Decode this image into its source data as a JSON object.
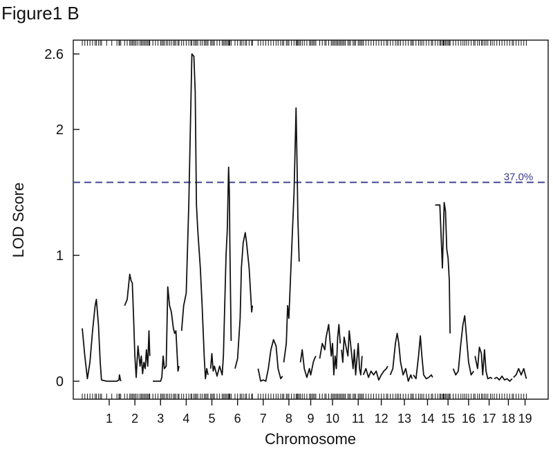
{
  "figure_label": "Figure1 B",
  "chart_data": {
    "type": "line",
    "xlabel": "Chromosome",
    "ylabel": "LOD Score",
    "ylim": [
      0,
      2.6
    ],
    "y_ticks": [
      {
        "value": 0,
        "label": "0"
      },
      {
        "value": 1,
        "label": "1"
      },
      {
        "value": 2,
        "label": "2"
      },
      {
        "value": 2.6,
        "label": "2.6"
      }
    ],
    "grid": false,
    "threshold": {
      "value": 1.58,
      "label": "37.0%",
      "color": "#3a3a8f",
      "style": "dashed"
    },
    "line_color": "#111111",
    "chromosomes": [
      {
        "label": "1",
        "start": 0.0,
        "end": 1.0
      },
      {
        "label": "2",
        "start": 1.0,
        "end": 2.0
      },
      {
        "label": "3",
        "start": 2.0,
        "end": 3.0
      },
      {
        "label": "4",
        "start": 3.0,
        "end": 4.0
      },
      {
        "label": "5",
        "start": 4.0,
        "end": 5.0
      },
      {
        "label": "6",
        "start": 5.0,
        "end": 6.0
      },
      {
        "label": "7",
        "start": 6.0,
        "end": 7.0
      },
      {
        "label": "8",
        "start": 7.0,
        "end": 8.0
      },
      {
        "label": "9",
        "start": 8.0,
        "end": 8.7
      },
      {
        "label": "10",
        "start": 8.7,
        "end": 9.7
      },
      {
        "label": "11",
        "start": 9.7,
        "end": 10.7
      },
      {
        "label": "12",
        "start": 10.7,
        "end": 11.5
      },
      {
        "label": "13",
        "start": 11.5,
        "end": 12.5
      },
      {
        "label": "14",
        "start": 12.5,
        "end": 13.3
      },
      {
        "label": "15",
        "start": 13.3,
        "end": 14.1
      },
      {
        "label": "16",
        "start": 14.1,
        "end": 14.9
      },
      {
        "label": "17",
        "start": 14.9,
        "end": 15.7
      },
      {
        "label": "18",
        "start": 15.7,
        "end": 16.4
      },
      {
        "label": "19",
        "start": 16.4,
        "end": 17.0
      }
    ],
    "series": [
      {
        "chromosome": "1",
        "points": [
          [
            -0.55,
            0.42
          ],
          [
            -0.45,
            0.2
          ],
          [
            -0.35,
            0.02
          ],
          [
            -0.25,
            0.15
          ],
          [
            -0.15,
            0.4
          ],
          [
            -0.05,
            0.6
          ],
          [
            0.0,
            0.65
          ],
          [
            0.08,
            0.45
          ],
          [
            0.15,
            0.15
          ],
          [
            0.2,
            0.01
          ],
          [
            0.4,
            0.0
          ],
          [
            0.6,
            0.0
          ],
          [
            0.8,
            0.0
          ],
          [
            0.88,
            0.01
          ],
          [
            0.9,
            0.05
          ],
          [
            0.95,
            0.0
          ]
        ]
      },
      {
        "chromosome": "2",
        "points": [
          [
            1.1,
            0.6
          ],
          [
            1.2,
            0.65
          ],
          [
            1.3,
            0.85
          ],
          [
            1.35,
            0.8
          ],
          [
            1.4,
            0.78
          ],
          [
            1.45,
            0.5
          ],
          [
            1.5,
            0.2
          ],
          [
            1.55,
            0.03
          ],
          [
            1.62,
            0.28
          ],
          [
            1.7,
            0.12
          ],
          [
            1.75,
            0.2
          ],
          [
            1.8,
            0.06
          ],
          [
            1.85,
            0.15
          ],
          [
            1.9,
            0.1
          ],
          [
            1.95,
            0.25
          ],
          [
            2.0,
            0.12
          ],
          [
            2.05,
            0.4
          ],
          [
            2.08,
            0.2
          ]
        ]
      },
      {
        "chromosome": "3",
        "points": [
          [
            2.2,
            0.0
          ],
          [
            2.3,
            0.0
          ],
          [
            2.4,
            0.0
          ],
          [
            2.5,
            0.0
          ],
          [
            2.55,
            0.03
          ],
          [
            2.6,
            0.2
          ],
          [
            2.65,
            0.1
          ],
          [
            2.72,
            0.12
          ],
          [
            2.78,
            0.75
          ],
          [
            2.85,
            0.6
          ],
          [
            2.92,
            0.55
          ],
          [
            3.0,
            0.42
          ],
          [
            3.05,
            0.38
          ],
          [
            3.1,
            0.4
          ],
          [
            3.18,
            0.08
          ],
          [
            3.22,
            0.12
          ]
        ]
      },
      {
        "chromosome": "4",
        "points": [
          [
            3.32,
            0.4
          ],
          [
            3.4,
            0.6
          ],
          [
            3.5,
            0.7
          ],
          [
            3.6,
            1.4
          ],
          [
            3.68,
            2.2
          ],
          [
            3.72,
            2.6
          ],
          [
            3.8,
            2.58
          ],
          [
            3.85,
            2.3
          ],
          [
            3.9,
            1.4
          ],
          [
            3.95,
            1.2
          ],
          [
            4.05,
            0.9
          ],
          [
            4.12,
            0.6
          ],
          [
            4.2,
            0.2
          ],
          [
            4.25,
            0.02
          ],
          [
            4.3,
            0.1
          ],
          [
            4.35,
            0.05
          ]
        ]
      },
      {
        "chromosome": "5",
        "points": [
          [
            4.45,
            0.1
          ],
          [
            4.5,
            0.22
          ],
          [
            4.55,
            0.08
          ],
          [
            4.6,
            0.12
          ],
          [
            4.7,
            0.04
          ],
          [
            4.8,
            0.12
          ],
          [
            4.9,
            0.05
          ],
          [
            4.95,
            0.2
          ],
          [
            5.0,
            0.6
          ],
          [
            5.05,
            1.0
          ],
          [
            5.1,
            1.2
          ],
          [
            5.15,
            1.7
          ],
          [
            5.18,
            1.5
          ],
          [
            5.2,
            1.1
          ],
          [
            5.25,
            0.32
          ]
        ]
      },
      {
        "chromosome": "6",
        "points": [
          [
            5.4,
            0.1
          ],
          [
            5.5,
            0.18
          ],
          [
            5.6,
            0.5
          ],
          [
            5.65,
            0.9
          ],
          [
            5.72,
            1.1
          ],
          [
            5.8,
            1.18
          ],
          [
            5.85,
            1.1
          ],
          [
            5.95,
            0.9
          ],
          [
            6.05,
            0.55
          ],
          [
            6.08,
            0.6
          ]
        ]
      },
      {
        "chromosome": "7",
        "points": [
          [
            6.3,
            0.1
          ],
          [
            6.4,
            0.0
          ],
          [
            6.5,
            0.01
          ],
          [
            6.6,
            0.0
          ],
          [
            6.7,
            0.1
          ],
          [
            6.8,
            0.25
          ],
          [
            6.9,
            0.33
          ],
          [
            7.0,
            0.28
          ],
          [
            7.08,
            0.1
          ],
          [
            7.18,
            0.02
          ],
          [
            7.25,
            0.04
          ]
        ]
      },
      {
        "chromosome": "8",
        "points": [
          [
            7.3,
            0.15
          ],
          [
            7.4,
            0.3
          ],
          [
            7.45,
            0.6
          ],
          [
            7.5,
            0.5
          ],
          [
            7.6,
            1.0
          ],
          [
            7.7,
            1.5
          ],
          [
            7.78,
            2.17
          ],
          [
            7.82,
            1.7
          ],
          [
            7.85,
            1.3
          ],
          [
            7.9,
            0.95
          ]
        ]
      },
      {
        "chromosome": "9",
        "points": [
          [
            7.95,
            0.15
          ],
          [
            8.02,
            0.25
          ],
          [
            8.1,
            0.1
          ],
          [
            8.2,
            0.03
          ],
          [
            8.3,
            0.1
          ],
          [
            8.35,
            0.05
          ],
          [
            8.4,
            0.1
          ],
          [
            8.45,
            0.15
          ],
          [
            8.5,
            0.18
          ],
          [
            8.55,
            0.2
          ]
        ]
      },
      {
        "chromosome": "10",
        "points": [
          [
            8.7,
            0.18
          ],
          [
            8.8,
            0.3
          ],
          [
            8.9,
            0.25
          ],
          [
            8.95,
            0.35
          ],
          [
            9.05,
            0.45
          ],
          [
            9.15,
            0.2
          ],
          [
            9.2,
            0.3
          ],
          [
            9.25,
            0.05
          ],
          [
            9.3,
            0.2
          ],
          [
            9.35,
            0.1
          ],
          [
            9.4,
            0.35
          ],
          [
            9.45,
            0.45
          ],
          [
            9.5,
            0.3
          ]
        ]
      },
      {
        "chromosome": "11",
        "points": [
          [
            9.55,
            0.25
          ],
          [
            9.6,
            0.15
          ],
          [
            9.65,
            0.35
          ],
          [
            9.7,
            0.3
          ],
          [
            9.8,
            0.2
          ],
          [
            9.85,
            0.4
          ],
          [
            9.9,
            0.3
          ],
          [
            10.0,
            0.1
          ],
          [
            10.05,
            0.25
          ],
          [
            10.1,
            0.05
          ],
          [
            10.2,
            0.3
          ],
          [
            10.25,
            0.1
          ],
          [
            10.3,
            0.05
          ],
          [
            10.35,
            0.2
          ]
        ]
      },
      {
        "chromosome": "12",
        "points": [
          [
            10.4,
            0.05
          ],
          [
            10.5,
            0.1
          ],
          [
            10.6,
            0.03
          ],
          [
            10.7,
            0.08
          ],
          [
            10.8,
            0.05
          ],
          [
            10.9,
            0.08
          ],
          [
            11.0,
            0.01
          ],
          [
            11.1,
            0.05
          ],
          [
            11.2,
            0.08
          ],
          [
            11.3,
            0.1
          ],
          [
            11.35,
            0.12
          ]
        ]
      },
      {
        "chromosome": "13",
        "points": [
          [
            11.45,
            0.05
          ],
          [
            11.55,
            0.1
          ],
          [
            11.65,
            0.3
          ],
          [
            11.72,
            0.38
          ],
          [
            11.78,
            0.3
          ],
          [
            11.85,
            0.15
          ],
          [
            11.95,
            0.05
          ],
          [
            12.05,
            0.1
          ],
          [
            12.15,
            0.0
          ],
          [
            12.25,
            0.05
          ],
          [
            12.3,
            0.02
          ]
        ]
      },
      {
        "chromosome": "14",
        "points": [
          [
            12.35,
            0.05
          ],
          [
            12.45,
            0.02
          ],
          [
            12.55,
            0.2
          ],
          [
            12.62,
            0.36
          ],
          [
            12.68,
            0.2
          ],
          [
            12.75,
            0.05
          ],
          [
            12.85,
            0.02
          ],
          [
            12.95,
            0.03
          ],
          [
            13.05,
            0.05
          ],
          [
            13.1,
            0.03
          ]
        ]
      },
      {
        "chromosome": "15",
        "points": [
          [
            13.2,
            1.4
          ],
          [
            13.3,
            1.4
          ],
          [
            13.38,
            1.4
          ],
          [
            13.42,
            1.2
          ],
          [
            13.48,
            0.9
          ],
          [
            13.52,
            1.2
          ],
          [
            13.55,
            1.42
          ],
          [
            13.6,
            1.35
          ],
          [
            13.65,
            1.05
          ],
          [
            13.7,
            0.98
          ],
          [
            13.75,
            0.8
          ],
          [
            13.78,
            0.38
          ]
        ]
      },
      {
        "chromosome": "16",
        "points": [
          [
            13.9,
            0.1
          ],
          [
            14.0,
            0.05
          ],
          [
            14.1,
            0.08
          ],
          [
            14.2,
            0.3
          ],
          [
            14.28,
            0.45
          ],
          [
            14.35,
            0.52
          ],
          [
            14.42,
            0.35
          ],
          [
            14.5,
            0.15
          ],
          [
            14.6,
            0.05
          ],
          [
            14.7,
            0.08
          ]
        ]
      },
      {
        "chromosome": "17",
        "points": [
          [
            14.75,
            0.2
          ],
          [
            14.85,
            0.1
          ],
          [
            14.92,
            0.27
          ],
          [
            15.0,
            0.22
          ],
          [
            15.05,
            0.05
          ],
          [
            15.12,
            0.25
          ],
          [
            15.18,
            0.08
          ],
          [
            15.25,
            0.02
          ],
          [
            15.35,
            0.03
          ],
          [
            15.42,
            0.02
          ]
        ]
      },
      {
        "chromosome": "18",
        "points": [
          [
            15.5,
            0.02
          ],
          [
            15.6,
            0.03
          ],
          [
            15.7,
            0.01
          ],
          [
            15.8,
            0.04
          ],
          [
            15.9,
            0.01
          ],
          [
            16.0,
            0.02
          ],
          [
            16.1,
            0.0
          ],
          [
            16.2,
            0.02
          ]
        ]
      },
      {
        "chromosome": "19",
        "points": [
          [
            16.25,
            0.03
          ],
          [
            16.35,
            0.05
          ],
          [
            16.45,
            0.1
          ],
          [
            16.55,
            0.05
          ],
          [
            16.65,
            0.1
          ],
          [
            16.75,
            0.02
          ]
        ]
      }
    ]
  }
}
